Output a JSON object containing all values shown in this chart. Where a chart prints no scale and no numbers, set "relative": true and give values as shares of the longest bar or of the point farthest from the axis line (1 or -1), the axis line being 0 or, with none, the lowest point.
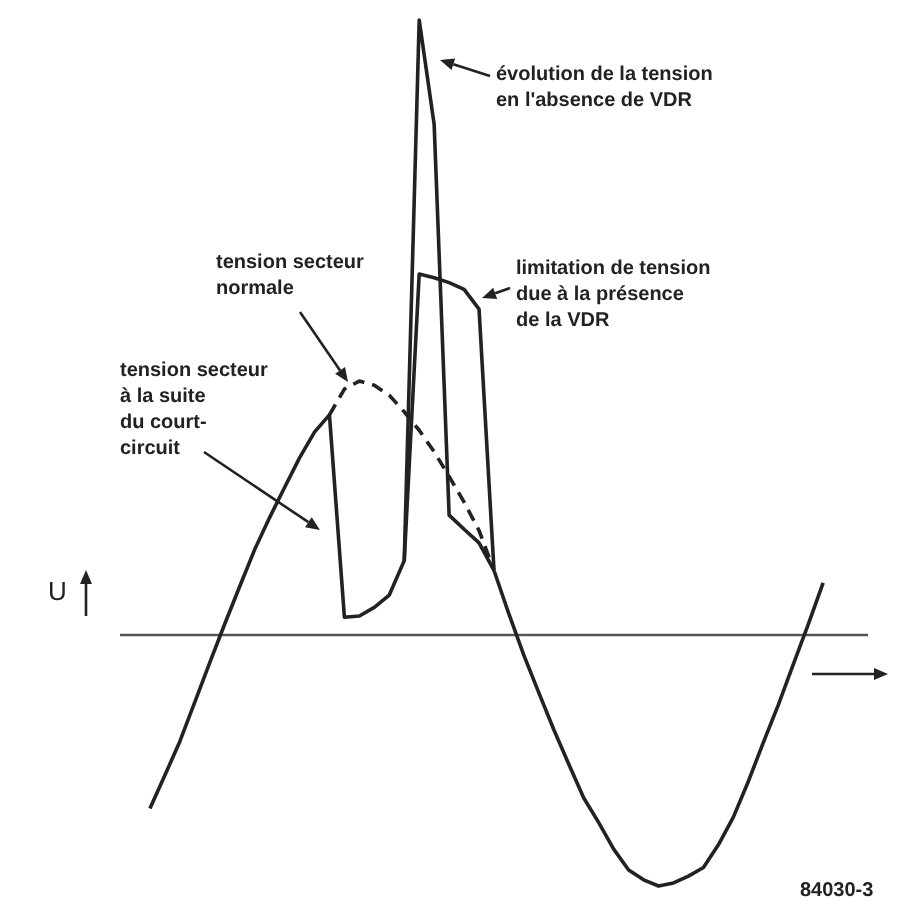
{
  "chart_data": {
    "type": "line",
    "relative": true,
    "ylabel": "U",
    "tick_labels": false,
    "marker": "none",
    "categories": [
      null,
      null,
      null,
      null,
      null,
      null,
      null,
      null,
      null,
      null,
      null,
      null,
      null,
      null,
      null,
      null,
      null,
      null,
      null,
      null,
      null,
      null,
      null,
      null,
      null,
      null,
      null,
      null,
      null,
      null,
      null,
      null,
      null,
      null,
      null,
      null,
      null,
      null,
      null,
      null,
      null,
      null,
      null,
      null,
      null,
      null,
      null,
      null,
      null,
      null,
      null
    ],
    "series": [
      {
        "color": "#222222",
        "line_style": "solid",
        "values": [
          null,
          null,
          -0.282,
          -0.228,
          -0.173,
          -0.109,
          -0.045,
          0.018,
          0.079,
          0.139,
          0.191,
          0.24,
          0.288,
          0.33,
          0.358,
          0.029,
          0.031,
          0.045,
          0.065,
          0.121,
          0.587,
          0.581,
          0.573,
          0.562,
          0.53,
          0.105,
          0.034,
          -0.033,
          -0.094,
          -0.154,
          -0.21,
          -0.265,
          -0.305,
          -0.348,
          -0.382,
          -0.398,
          -0.408,
          -0.403,
          -0.392,
          -0.378,
          -0.341,
          -0.296,
          -0.238,
          -0.175,
          -0.114,
          -0.048,
          0.017,
          0.085,
          null,
          null,
          null
        ]
      },
      {
        "color": "#222222",
        "line_style": "solid",
        "values": [
          null,
          null,
          null,
          null,
          null,
          null,
          null,
          null,
          null,
          null,
          null,
          null,
          null,
          null,
          null,
          null,
          null,
          null,
          null,
          0.121,
          1,
          0.83,
          0.195,
          0.172,
          0.15,
          0.105,
          null,
          null,
          null,
          null,
          null,
          null,
          null,
          null,
          null,
          null,
          null,
          null,
          null,
          null,
          null,
          null,
          null,
          null,
          null,
          null,
          null,
          null,
          null,
          null,
          null
        ]
      },
      {
        "color": "#222222",
        "line_style": "dashed",
        "values": [
          null,
          null,
          null,
          null,
          null,
          null,
          null,
          null,
          null,
          null,
          null,
          null,
          null,
          null,
          0.358,
          0.4,
          0.413,
          0.406,
          0.39,
          0.363,
          0.333,
          0.298,
          0.258,
          0.216,
          0.17,
          0.105,
          null,
          null,
          null,
          null,
          null,
          null,
          null,
          null,
          null,
          null,
          null,
          null,
          null,
          null,
          null,
          null,
          null,
          null,
          null,
          null,
          null,
          null,
          null,
          null,
          null
        ]
      }
    ],
    "annotations": [
      "évolution de la tension\nen l'absence de VDR",
      "limitation de tension\ndue à la présence\nde la VDR",
      "tension secteur\nnormale",
      "tension secteur\nà la suite\ndu court-\ncircuit",
      "84030-3"
    ]
  }
}
